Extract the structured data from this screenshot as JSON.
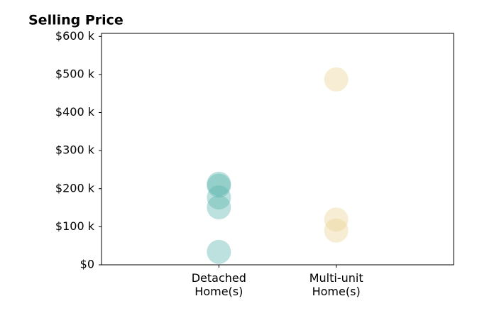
{
  "chart_data": {
    "type": "strip",
    "title": "Selling Price",
    "categories": [
      "Detached\nHome(s)",
      "Multi-unit\nHome(s)"
    ],
    "values": [
      [
        213000,
        208000,
        177000,
        151000,
        34000
      ],
      [
        487000,
        119000,
        90000
      ]
    ],
    "colors": [
      "#5ab4ac",
      "#ecd394"
    ],
    "ylim": [
      0,
      608000
    ],
    "yticks": [
      {
        "value": 0,
        "label": "$0"
      },
      {
        "value": 100000,
        "label": "$100 k"
      },
      {
        "value": 200000,
        "label": "$200 k"
      },
      {
        "value": 300000,
        "label": "$300 k"
      },
      {
        "value": 400000,
        "label": "$400 k"
      },
      {
        "value": 500000,
        "label": "$500 k"
      },
      {
        "value": 600000,
        "label": "$600 k"
      }
    ]
  }
}
